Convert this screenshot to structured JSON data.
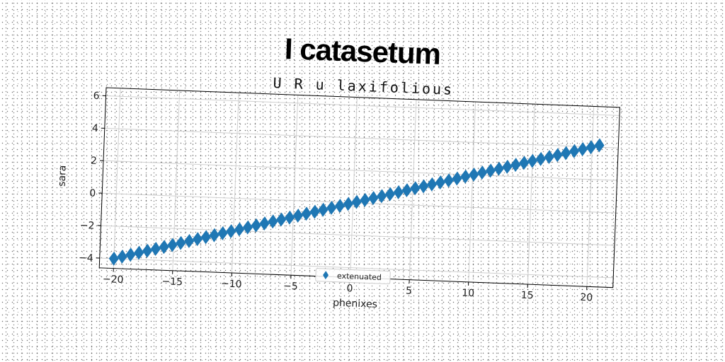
{
  "chart_data": {
    "type": "scatter",
    "title": "I catasetum",
    "subtitle": "U R u laxifolious",
    "xlabel": "phenixes",
    "ylabel": "sara",
    "xlim": [
      -21.2,
      22.2
    ],
    "ylim": [
      -4.6,
      6.5
    ],
    "xticks": [
      -20,
      -15,
      -10,
      -5,
      0,
      5,
      10,
      15,
      20
    ],
    "yticks": [
      -4,
      -2,
      0,
      2,
      4,
      6
    ],
    "grid": true,
    "legend_position": "bottom-center",
    "series": [
      {
        "name": "extenuated",
        "marker": "diamond",
        "color": "#1f77b4",
        "x": [
          -20,
          -19.3,
          -18.6,
          -17.9,
          -17.2,
          -16.5,
          -15.8,
          -15.1,
          -14.4,
          -13.7,
          -13,
          -12.3,
          -11.6,
          -10.9,
          -10.2,
          -9.5,
          -8.8,
          -8.1,
          -7.4,
          -6.7,
          -6,
          -5.3,
          -4.6,
          -3.9,
          -3.2,
          -2.5,
          -1.8,
          -1.1,
          -0.4,
          0.3,
          1,
          1.7,
          2.4,
          3.1,
          3.8,
          4.5,
          5.2,
          5.9,
          6.6,
          7.3,
          8,
          8.7,
          9.4,
          10.1,
          10.8,
          11.5,
          12.2,
          12.9,
          13.6,
          14.3,
          15,
          15.7,
          16.4,
          17.1,
          17.8,
          18.5,
          19.2,
          19.9,
          20.6
        ],
        "y": [
          -4,
          -3.86,
          -3.72,
          -3.58,
          -3.44,
          -3.3,
          -3.16,
          -3.02,
          -2.88,
          -2.74,
          -2.6,
          -2.46,
          -2.32,
          -2.18,
          -2.04,
          -1.9,
          -1.76,
          -1.62,
          -1.48,
          -1.34,
          -1.2,
          -1.06,
          -0.92,
          -0.78,
          -0.64,
          -0.5,
          -0.36,
          -0.22,
          -0.08,
          0.06,
          0.2,
          0.34,
          0.48,
          0.62,
          0.76,
          0.9,
          1.04,
          1.18,
          1.32,
          1.46,
          1.6,
          1.74,
          1.88,
          2.02,
          2.16,
          2.3,
          2.44,
          2.58,
          2.72,
          2.86,
          3,
          3.14,
          3.28,
          3.42,
          3.56,
          3.7,
          3.84,
          3.98,
          4.12
        ]
      }
    ]
  }
}
